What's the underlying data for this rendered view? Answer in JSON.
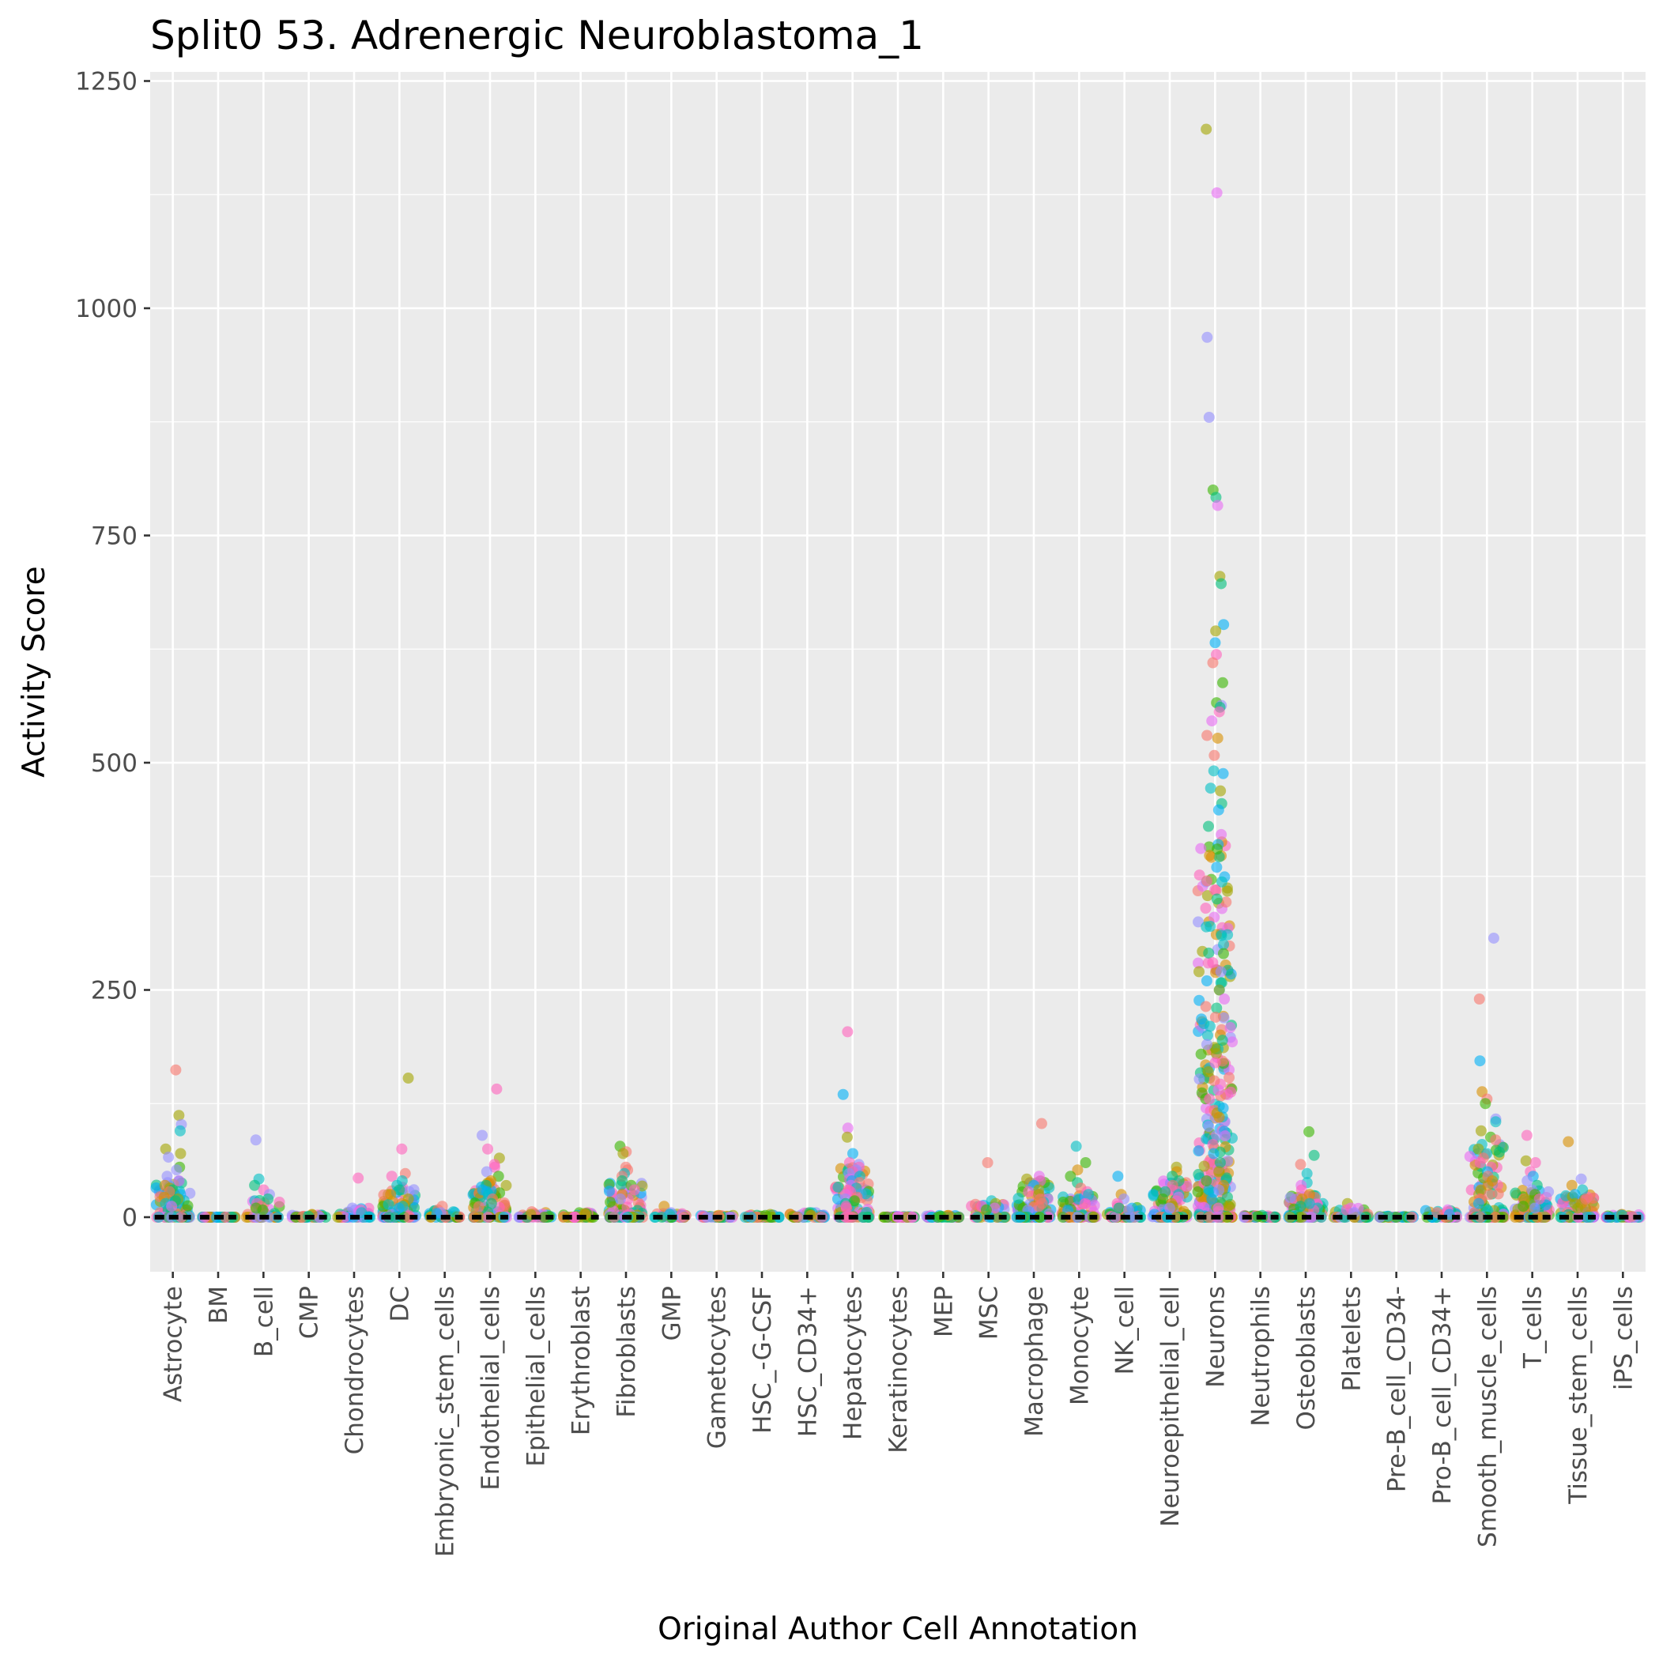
{
  "chart_data": {
    "type": "scatter",
    "title": "Split0 53. Adrenergic Neuroblastoma_1",
    "xlabel": "Original Author Cell Annotation",
    "ylabel": "Activity Score",
    "ylim": [
      -60,
      1260
    ],
    "yticks": [
      0,
      250,
      500,
      750,
      1000,
      1250
    ],
    "ytick_labels": [
      "0",
      "250",
      "500",
      "750",
      "1000",
      "1250"
    ],
    "grid": true,
    "legend": "none",
    "point_opacity": 0.6,
    "palette": [
      "#F8766D",
      "#D89000",
      "#A3A500",
      "#39B600",
      "#00BF7D",
      "#00BFC4",
      "#00B0F6",
      "#9590FF",
      "#E76BF3",
      "#FF62BC"
    ],
    "median_color": "#000000",
    "categories": [
      "Astrocyte",
      "BM",
      "B_cell",
      "CMP",
      "Chondrocytes",
      "DC",
      "Embryonic_stem_cells",
      "Endothelial_cells",
      "Epithelial_cells",
      "Erythroblast",
      "Fibroblasts",
      "GMP",
      "Gametocytes",
      "HSC_-G-CSF",
      "HSC_CD34+",
      "Hepatocytes",
      "Keratinocytes",
      "MEP",
      "MSC",
      "Macrophage",
      "Monocyte",
      "NK_cell",
      "Neuroepithelial_cell",
      "Neurons",
      "Neutrophils",
      "Osteoblasts",
      "Platelets",
      "Pre-B_cell_CD34-",
      "Pro-B_cell_CD34+",
      "Smooth_muscle_cells",
      "T_cells",
      "Tissue_stem_cells",
      "iPS_cells"
    ],
    "medians": [
      0,
      0,
      0,
      0,
      0,
      0,
      0,
      0,
      0,
      0,
      0,
      0,
      0,
      0,
      0,
      0,
      0,
      0,
      0,
      0,
      0,
      0,
      0,
      0,
      0,
      0,
      0,
      0,
      0,
      0,
      0,
      0,
      0
    ],
    "outliers": [
      {
        "category": "Astrocyte",
        "values": [
          162,
          112,
          102,
          95,
          75,
          70,
          66,
          55,
          52,
          45,
          40,
          38,
          35,
          32,
          30,
          28,
          25,
          22,
          20,
          18,
          15,
          12
        ]
      },
      {
        "category": "BM",
        "values": [
          0
        ]
      },
      {
        "category": "B_cell",
        "values": [
          85,
          42,
          35,
          30,
          25,
          20,
          18,
          15,
          12,
          10,
          8
        ]
      },
      {
        "category": "CMP",
        "values": [
          3,
          1
        ]
      },
      {
        "category": "Chondrocytes",
        "values": [
          43,
          10,
          8,
          6,
          5
        ]
      },
      {
        "category": "DC",
        "values": [
          153,
          75,
          48,
          45,
          40,
          35,
          30,
          25,
          20,
          15,
          12,
          10
        ]
      },
      {
        "category": "Embryonic_stem_cells",
        "values": [
          12,
          8,
          6,
          5,
          4
        ]
      },
      {
        "category": "Endothelial_cells",
        "values": [
          141,
          90,
          75,
          65,
          58,
          55,
          50,
          45,
          40,
          38,
          35,
          30,
          28,
          25,
          20,
          15
        ]
      },
      {
        "category": "Epithelial_cells",
        "values": [
          6,
          4,
          3
        ]
      },
      {
        "category": "Erythroblast",
        "values": [
          5,
          4,
          3
        ]
      },
      {
        "category": "Fibroblasts",
        "values": [
          78,
          72,
          70,
          55,
          52,
          48,
          45,
          40,
          35,
          30,
          25,
          20
        ]
      },
      {
        "category": "GMP",
        "values": [
          12,
          5,
          3
        ]
      },
      {
        "category": "Gametocytes",
        "values": [
          2,
          1
        ]
      },
      {
        "category": "HSC_-G-CSF",
        "values": [
          3,
          2
        ]
      },
      {
        "category": "HSC_CD34+",
        "values": [
          5,
          3,
          2
        ]
      },
      {
        "category": "Hepatocytes",
        "values": [
          204,
          135,
          98,
          88,
          70,
          60,
          58,
          55,
          52,
          50,
          48,
          45,
          42,
          40,
          38,
          35,
          32,
          30,
          28,
          25,
          22,
          20,
          18,
          15,
          12,
          10
        ]
      },
      {
        "category": "Keratinocytes",
        "values": [
          1
        ]
      },
      {
        "category": "MEP",
        "values": [
          2,
          1
        ]
      },
      {
        "category": "MSC",
        "values": [
          60,
          18,
          15,
          12,
          10,
          8
        ]
      },
      {
        "category": "Macrophage",
        "values": [
          103,
          45,
          42,
          40,
          35,
          30,
          28,
          25,
          20,
          15,
          12
        ]
      },
      {
        "category": "Monocyte",
        "values": [
          78,
          60,
          52,
          45,
          38,
          32,
          28,
          25,
          20,
          15
        ]
      },
      {
        "category": "NK_cell",
        "values": [
          45,
          25,
          20,
          15,
          10,
          8
        ]
      },
      {
        "category": "Neuroepithelial_cell",
        "values": [
          55,
          50,
          45,
          40,
          35,
          30,
          28,
          25,
          22,
          20,
          18,
          15,
          12,
          10
        ]
      },
      {
        "category": "Neurons",
        "values": [
          1197,
          1127,
          968,
          880,
          800,
          792,
          783,
          705,
          697,
          652,
          645,
          632,
          619,
          610,
          588,
          566,
          563,
          561,
          556,
          546,
          530,
          527,
          508,
          491,
          488,
          472,
          469,
          455,
          448,
          430,
          421,
          410,
          405,
          398,
          385,
          370,
          360,
          350,
          340,
          330,
          320,
          310,
          300,
          290,
          280,
          270,
          260,
          250,
          240,
          230,
          220,
          210,
          200,
          190,
          180,
          170,
          160,
          150,
          140,
          130,
          120,
          110,
          100,
          90,
          80,
          70,
          60,
          50,
          40,
          30,
          20,
          10
        ]
      },
      {
        "category": "Neutrophils",
        "values": [
          2,
          1
        ]
      },
      {
        "category": "Osteoblasts",
        "values": [
          94,
          68,
          58,
          48,
          38,
          35,
          30,
          25,
          20,
          15,
          12
        ]
      },
      {
        "category": "Platelets",
        "values": [
          15,
          10,
          8,
          5
        ]
      },
      {
        "category": "Pre-B_cell_CD34-",
        "values": [
          1
        ]
      },
      {
        "category": "Pro-B_cell_CD34+",
        "values": [
          8,
          6,
          5,
          3
        ]
      },
      {
        "category": "Smooth_muscle_cells",
        "values": [
          307,
          240,
          172,
          138,
          130,
          125,
          108,
          105,
          95,
          88,
          85,
          80,
          75,
          70,
          65,
          60,
          55,
          50,
          45,
          40,
          35,
          30,
          25,
          20,
          15
        ]
      },
      {
        "category": "T_cells",
        "values": [
          90,
          62,
          60,
          50,
          45,
          40,
          35,
          30,
          25,
          20,
          15,
          12,
          10
        ]
      },
      {
        "category": "Tissue_stem_cells",
        "values": [
          83,
          42,
          35,
          30,
          25,
          20,
          15,
          10
        ]
      },
      {
        "category": "iPS_cells",
        "values": [
          3,
          2,
          1
        ]
      }
    ],
    "bulk_max": [
      40,
      0,
      20,
      3,
      10,
      35,
      8,
      40,
      5,
      5,
      40,
      5,
      2,
      3,
      5,
      55,
      1,
      2,
      15,
      40,
      25,
      15,
      40,
      420,
      2,
      25,
      10,
      1,
      8,
      80,
      30,
      25,
      3
    ]
  }
}
